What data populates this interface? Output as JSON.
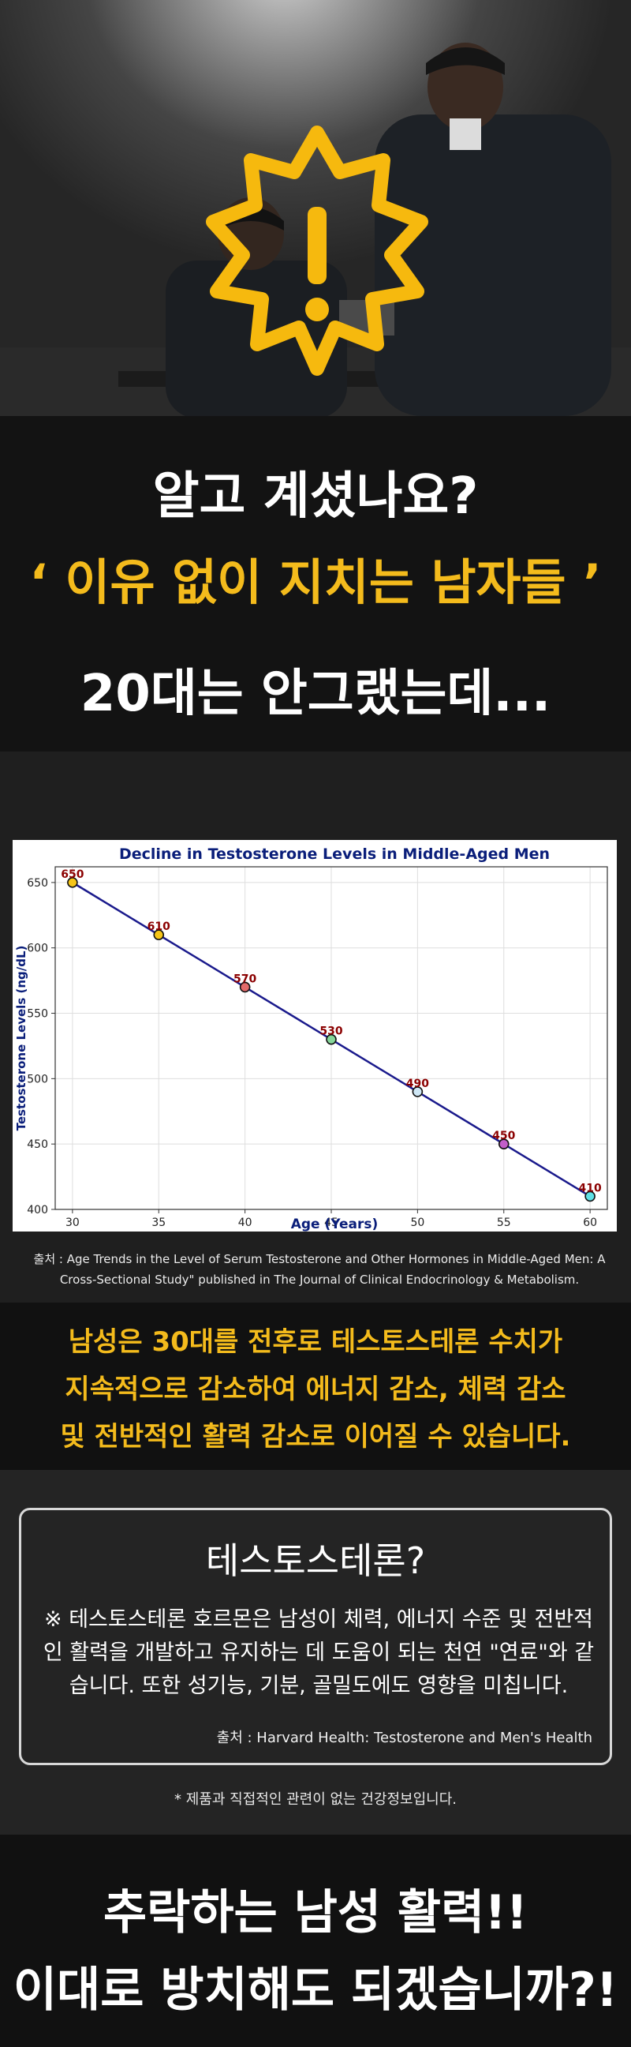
{
  "headline": {
    "line1": "알고 계셨나요?",
    "line2": "‘ 이유 없이 지치는 남자들 ’",
    "line3": "20대는 안그랬는데..."
  },
  "chart_data": {
    "type": "line",
    "title": "Decline in Testosterone Levels in Middle-Aged Men",
    "xlabel": "Age (Years)",
    "ylabel": "Testosterone Levels (ng/dL)",
    "x": [
      30,
      35,
      40,
      45,
      50,
      55,
      60
    ],
    "series": [
      {
        "values": [
          650,
          610,
          570,
          530,
          490,
          450,
          410
        ]
      }
    ],
    "data_labels": [
      "650",
      "610",
      "570",
      "530",
      "490",
      "450",
      "410"
    ],
    "marker_colors": [
      "#f5c518",
      "#f5c518",
      "#e36a6a",
      "#86d69a",
      "#cfe7f5",
      "#c15ec9",
      "#5fe0e6"
    ],
    "x_ticks": [
      "30",
      "35",
      "40",
      "45",
      "50",
      "55",
      "60"
    ],
    "y_ticks": [
      "400",
      "450",
      "500",
      "550",
      "600",
      "650"
    ],
    "xlim": [
      29,
      61
    ],
    "ylim": [
      400,
      662
    ],
    "grid": true,
    "line_color": "#1a1a8c",
    "label_color": "#8b0000",
    "title_color": "#0a1e7a"
  },
  "source_note": "출처 : Age Trends in the Level of Serum Testosterone and Other Hormones in Middle-Aged Men: A Cross-Sectional Study\" published in The Journal of Clinical Endocrinology & Metabolism.",
  "statement": {
    "line1": "남성은 30대를 전후로 테스토스테론 수치가",
    "line2": "지속적으로 감소하여 에너지 감소, 체력 감소",
    "line3": "및 전반적인 활력 감소로 이어질 수 있습니다."
  },
  "info": {
    "title": "테스토스테론?",
    "text": "※ 테스토스테론 호르몬은 남성이 체력, 에너지 수준 및 전반적인 활력을 개발하고 유지하는 데 도움이 되는 천연 \"연료\"와 같습니다. 또한 성기능, 기분, 골밀도에도 영향을 미칩니다.",
    "source": "출처 : Harvard Health: Testosterone and Men's Health"
  },
  "disclaimer": "* 제품과 직접적인 관련이 없는 건강정보입니다.",
  "bottom": {
    "line1": "추락하는 남성 활력!!",
    "line2": "이대로 방치해도 되겠습니까?!"
  },
  "colors": {
    "accent": "#f4bb1c"
  },
  "icons": {
    "hero_badge": "exclamation-badge-icon"
  }
}
